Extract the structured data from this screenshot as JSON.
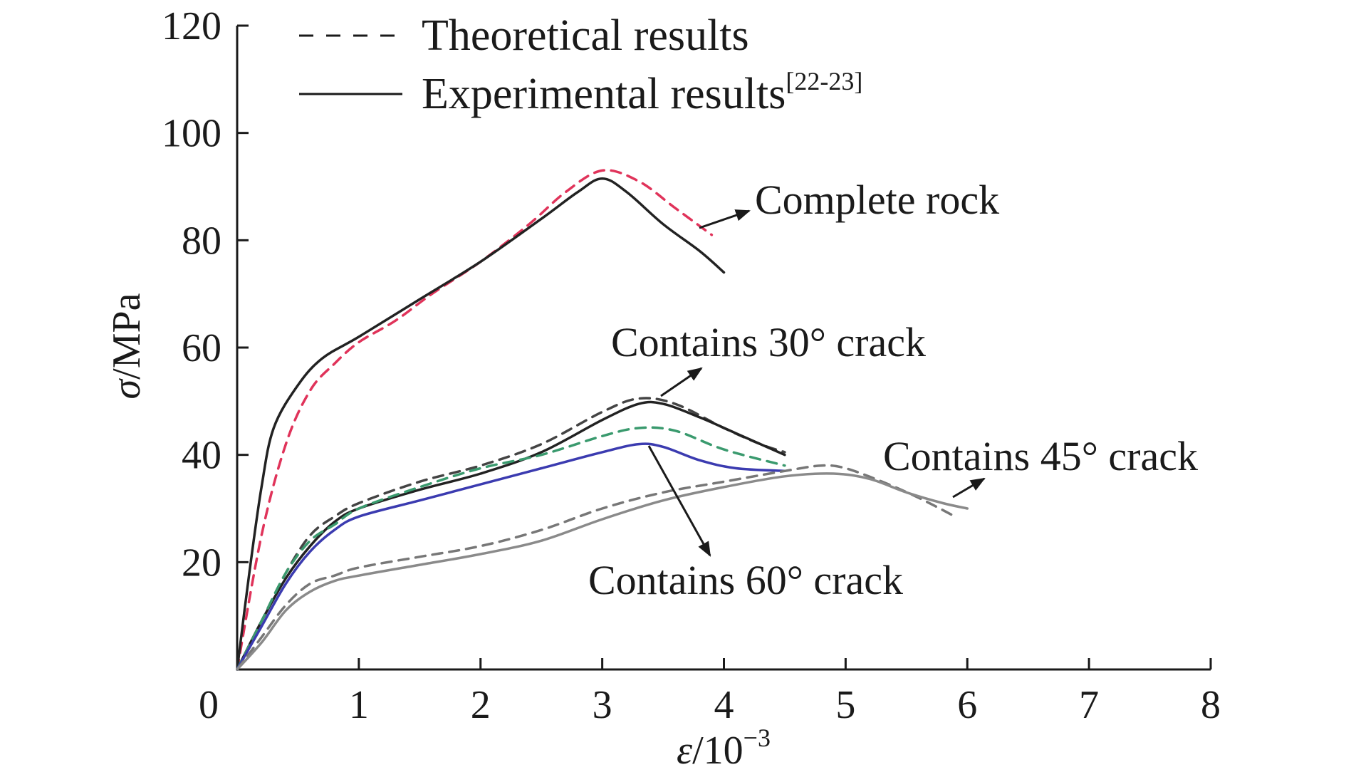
{
  "chart_data": {
    "type": "line",
    "xlabel_symbol": "ε",
    "xlabel_unit": "/10",
    "xlabel_exp": "−3",
    "ylabel_symbol": "σ",
    "ylabel_unit": "/MPa",
    "xlim": [
      0,
      8
    ],
    "ylim": [
      0,
      120
    ],
    "xticks": [
      "0",
      "1",
      "2",
      "3",
      "4",
      "5",
      "6",
      "7",
      "8"
    ],
    "yticks": [
      "20",
      "40",
      "60",
      "80",
      "100",
      "120"
    ],
    "legend": {
      "position": "top-left",
      "entries": [
        {
          "label": "Theoretical results",
          "sup": "",
          "style": "dashed"
        },
        {
          "label": "Experimental results",
          "sup": "[22-23]",
          "style": "solid"
        }
      ]
    },
    "annotations": [
      {
        "text": "Complete rock",
        "target": [
          3.7,
          83
        ],
        "anchor": [
          4.2,
          87
        ]
      },
      {
        "text": "Contains 30° crack",
        "target": [
          3.4,
          50
        ],
        "anchor": [
          3.8,
          56
        ]
      },
      {
        "text": "Contains 45° crack",
        "target": [
          5.9,
          33
        ],
        "anchor": [
          6.3,
          36
        ]
      },
      {
        "text": "Contains 60° crack",
        "target": [
          3.9,
          22
        ],
        "anchor": [
          3.3,
          43
        ]
      }
    ],
    "series": [
      {
        "name": "Complete rock",
        "style": "dashed",
        "color": "#e0335a",
        "points": [
          [
            0,
            0
          ],
          [
            0.2,
            25
          ],
          [
            0.4,
            42
          ],
          [
            0.6,
            52
          ],
          [
            0.8,
            57
          ],
          [
            1.0,
            61
          ],
          [
            1.3,
            65
          ],
          [
            1.6,
            70
          ],
          [
            2.0,
            76
          ],
          [
            2.4,
            83
          ],
          [
            2.7,
            89
          ],
          [
            3.0,
            93
          ],
          [
            3.3,
            91
          ],
          [
            3.6,
            86
          ],
          [
            3.9,
            81
          ]
        ]
      },
      {
        "name": "Complete rock",
        "style": "solid",
        "color": "#222222",
        "points": [
          [
            0,
            0
          ],
          [
            0.1,
            18
          ],
          [
            0.2,
            34
          ],
          [
            0.3,
            45
          ],
          [
            0.5,
            53
          ],
          [
            0.7,
            58
          ],
          [
            1.0,
            62
          ],
          [
            1.5,
            69
          ],
          [
            2.0,
            76
          ],
          [
            2.5,
            84
          ],
          [
            2.8,
            89
          ],
          [
            3.0,
            91.5
          ],
          [
            3.2,
            89
          ],
          [
            3.5,
            83
          ],
          [
            3.8,
            78
          ],
          [
            4.0,
            74
          ]
        ]
      },
      {
        "name": "Contains 30° crack",
        "style": "dashed",
        "color": "#444444",
        "points": [
          [
            0,
            0
          ],
          [
            0.2,
            9
          ],
          [
            0.4,
            18
          ],
          [
            0.6,
            25
          ],
          [
            0.8,
            28.5
          ],
          [
            1.0,
            31
          ],
          [
            1.5,
            35
          ],
          [
            2.0,
            38
          ],
          [
            2.5,
            42
          ],
          [
            3.0,
            48
          ],
          [
            3.3,
            50.5
          ],
          [
            3.6,
            49.5
          ],
          [
            4.0,
            45
          ],
          [
            4.3,
            42
          ],
          [
            4.5,
            40.5
          ]
        ]
      },
      {
        "name": "Contains 30° crack",
        "style": "solid",
        "color": "#222222",
        "points": [
          [
            0,
            0
          ],
          [
            0.2,
            9
          ],
          [
            0.4,
            17
          ],
          [
            0.6,
            23
          ],
          [
            0.8,
            27.5
          ],
          [
            1.0,
            30
          ],
          [
            1.5,
            33.5
          ],
          [
            2.0,
            36.5
          ],
          [
            2.5,
            40.5
          ],
          [
            3.0,
            46.5
          ],
          [
            3.3,
            49.5
          ],
          [
            3.5,
            49.5
          ],
          [
            3.8,
            47
          ],
          [
            4.1,
            44
          ],
          [
            4.5,
            40
          ]
        ]
      },
      {
        "name": "Contains 60° crack",
        "style": "dashed",
        "color": "#3a9a6e",
        "points": [
          [
            0,
            0
          ],
          [
            0.2,
            9
          ],
          [
            0.4,
            18
          ],
          [
            0.6,
            24
          ],
          [
            0.8,
            27
          ],
          [
            1.0,
            30
          ],
          [
            1.5,
            34
          ],
          [
            2.0,
            37.5
          ],
          [
            2.5,
            40
          ],
          [
            3.0,
            43.5
          ],
          [
            3.3,
            45
          ],
          [
            3.6,
            44.5
          ],
          [
            4.0,
            41
          ],
          [
            4.5,
            38
          ]
        ]
      },
      {
        "name": "Contains 60° crack",
        "style": "solid",
        "color": "#3b3bb0",
        "points": [
          [
            0,
            0
          ],
          [
            0.2,
            8
          ],
          [
            0.4,
            16
          ],
          [
            0.6,
            22
          ],
          [
            0.8,
            26
          ],
          [
            1.0,
            28.5
          ],
          [
            1.5,
            31.5
          ],
          [
            2.0,
            34.5
          ],
          [
            2.5,
            37.5
          ],
          [
            3.0,
            40.5
          ],
          [
            3.3,
            42
          ],
          [
            3.5,
            41.5
          ],
          [
            3.8,
            39
          ],
          [
            4.1,
            37.5
          ],
          [
            4.5,
            37
          ]
        ]
      },
      {
        "name": "Contains 45° crack",
        "style": "dashed",
        "color": "#777777",
        "points": [
          [
            0,
            0
          ],
          [
            0.2,
            6
          ],
          [
            0.4,
            12
          ],
          [
            0.6,
            16
          ],
          [
            0.8,
            17.5
          ],
          [
            1.0,
            19
          ],
          [
            1.5,
            21
          ],
          [
            2.0,
            23
          ],
          [
            2.5,
            26
          ],
          [
            3.0,
            30
          ],
          [
            3.5,
            33
          ],
          [
            4.0,
            35
          ],
          [
            4.5,
            37
          ],
          [
            4.8,
            38
          ],
          [
            5.0,
            37.5
          ],
          [
            5.3,
            35
          ],
          [
            5.6,
            32
          ],
          [
            5.9,
            28.5
          ]
        ]
      },
      {
        "name": "Contains 45° crack",
        "style": "solid",
        "color": "#8a8a8a",
        "points": [
          [
            0,
            0
          ],
          [
            0.2,
            5
          ],
          [
            0.4,
            11
          ],
          [
            0.6,
            14.5
          ],
          [
            0.8,
            16.5
          ],
          [
            1.0,
            17.5
          ],
          [
            1.5,
            19.5
          ],
          [
            2.0,
            21.5
          ],
          [
            2.5,
            24
          ],
          [
            3.0,
            28
          ],
          [
            3.5,
            31.5
          ],
          [
            4.0,
            34
          ],
          [
            4.5,
            36
          ],
          [
            4.9,
            36.5
          ],
          [
            5.2,
            35.5
          ],
          [
            5.5,
            33
          ],
          [
            5.8,
            31
          ],
          [
            6.0,
            30
          ]
        ]
      }
    ]
  }
}
